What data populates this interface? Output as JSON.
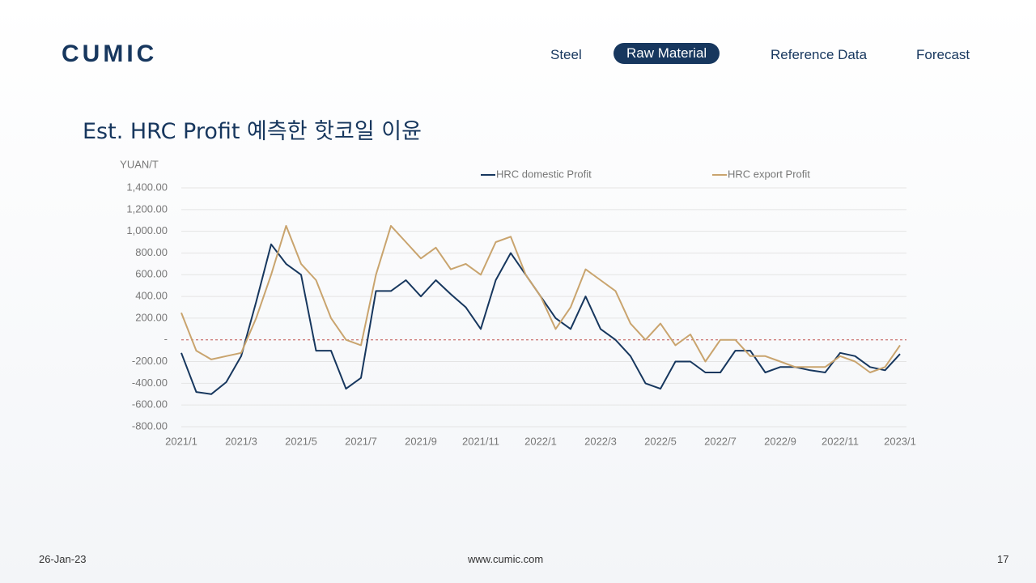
{
  "header": {
    "logo": "CUMIC",
    "nav": [
      "Steel",
      "Raw Material",
      "Reference Data",
      "Forecast"
    ],
    "active_nav": 1
  },
  "title": "Est. HRC Profit 예측한 핫코일 이윤",
  "chart_data": {
    "type": "line",
    "y_label": "YUAN/T",
    "categories": [
      "2021/1",
      null,
      null,
      null,
      "2021/3",
      null,
      null,
      null,
      "2021/5",
      null,
      null,
      null,
      "2021/7",
      null,
      null,
      null,
      "2021/9",
      null,
      null,
      null,
      "2021/11",
      null,
      null,
      null,
      "2022/1",
      null,
      null,
      null,
      "2022/3",
      null,
      null,
      null,
      "2022/5",
      null,
      null,
      null,
      "2022/7",
      null,
      null,
      null,
      "2022/9",
      null,
      null,
      null,
      "2022/11",
      null,
      null,
      null,
      "2023/1"
    ],
    "series": [
      {
        "name": "HRC domestic Profit",
        "color": "#17375e",
        "values": [
          -120,
          -480,
          -500,
          -390,
          -150,
          350,
          880,
          700,
          600,
          -100,
          -100,
          -450,
          -350,
          450,
          450,
          550,
          400,
          550,
          420,
          300,
          100,
          550,
          800,
          600,
          400,
          200,
          100,
          400,
          100,
          0,
          -150,
          -400,
          -450,
          -200,
          -200,
          -300,
          -300,
          -100,
          -100,
          -300,
          -250,
          -250,
          -280,
          -300,
          -120,
          -150,
          -250,
          -280,
          -130
        ]
      },
      {
        "name": "HRC export Profit",
        "color": "#c9a46e",
        "values": [
          250,
          -100,
          -180,
          -150,
          -120,
          200,
          600,
          1050,
          700,
          550,
          200,
          0,
          -50,
          600,
          1050,
          900,
          750,
          850,
          650,
          700,
          600,
          900,
          950,
          600,
          400,
          100,
          300,
          650,
          550,
          450,
          150,
          0,
          150,
          -50,
          50,
          -200,
          0,
          0,
          -150,
          -150,
          -200,
          -250,
          -250,
          -250,
          -150,
          -200,
          -300,
          -250,
          -50
        ]
      }
    ],
    "ylim": [
      -800,
      1400
    ],
    "yticks": [
      {
        "value": -800,
        "label": "-800.00"
      },
      {
        "value": -600,
        "label": "-600.00"
      },
      {
        "value": -400,
        "label": "-400.00"
      },
      {
        "value": -200,
        "label": "-200.00"
      },
      {
        "value": 0,
        "label": "-"
      },
      {
        "value": 200,
        "label": "200.00"
      },
      {
        "value": 400,
        "label": "400.00"
      },
      {
        "value": 600,
        "label": "600.00"
      },
      {
        "value": 800,
        "label": "800.00"
      },
      {
        "value": 1000,
        "label": "1,000.00"
      },
      {
        "value": 1200,
        "label": "1,200.00"
      },
      {
        "value": 1400,
        "label": "1,400.00"
      }
    ],
    "grid": true
  },
  "footer": {
    "date": "26-Jan-23",
    "url": "www.cumic.com",
    "page": "17"
  }
}
